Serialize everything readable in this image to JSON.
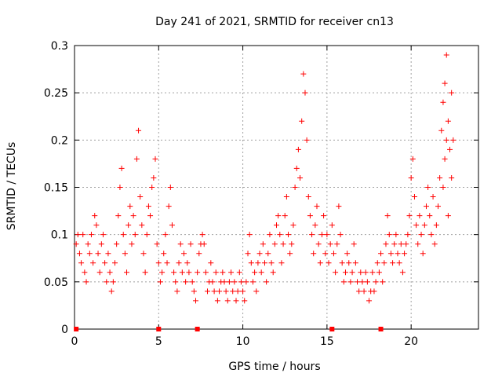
{
  "chart_data": {
    "type": "scatter",
    "title": "Day 241 of 2021, SRMTID for receiver cn13",
    "xlabel": "GPS time / hours",
    "ylabel": "SRMTID / TECUs",
    "xlim": [
      0,
      24
    ],
    "ylim": [
      0,
      0.3
    ],
    "x_ticks": [
      0,
      5,
      10,
      15,
      20
    ],
    "x_tick_labels": [
      "0",
      "5",
      "10",
      "15",
      "20"
    ],
    "y_ticks": [
      0,
      0.05,
      0.1,
      0.15,
      0.2,
      0.25,
      0.3
    ],
    "y_tick_labels": [
      "0",
      "0.05",
      "0.1",
      "0.15",
      "0.2",
      "0.25",
      "0.3"
    ],
    "grid": true,
    "marker": "plus",
    "color": "#ff0000",
    "series": [
      {
        "name": "SRMTID",
        "points": [
          [
            0.1,
            0.09
          ],
          [
            0.2,
            0.1
          ],
          [
            0.3,
            0.08
          ],
          [
            0.4,
            0.07
          ],
          [
            0.5,
            0.1
          ],
          [
            0.6,
            0.06
          ],
          [
            0.7,
            0.05
          ],
          [
            0.8,
            0.09
          ],
          [
            0.9,
            0.08
          ],
          [
            1.0,
            0.1
          ],
          [
            1.1,
            0.07
          ],
          [
            1.2,
            0.12
          ],
          [
            1.3,
            0.11
          ],
          [
            1.4,
            0.08
          ],
          [
            1.5,
            0.06
          ],
          [
            1.6,
            0.09
          ],
          [
            1.7,
            0.1
          ],
          [
            1.8,
            0.07
          ],
          [
            1.9,
            0.05
          ],
          [
            2.0,
            0.08
          ],
          [
            2.1,
            0.06
          ],
          [
            2.2,
            0.04
          ],
          [
            2.3,
            0.05
          ],
          [
            2.4,
            0.07
          ],
          [
            2.5,
            0.09
          ],
          [
            2.6,
            0.12
          ],
          [
            2.7,
            0.15
          ],
          [
            2.8,
            0.17
          ],
          [
            2.9,
            0.1
          ],
          [
            3.0,
            0.08
          ],
          [
            3.1,
            0.06
          ],
          [
            3.2,
            0.11
          ],
          [
            3.3,
            0.13
          ],
          [
            3.4,
            0.09
          ],
          [
            3.5,
            0.12
          ],
          [
            3.6,
            0.1
          ],
          [
            3.7,
            0.18
          ],
          [
            3.8,
            0.21
          ],
          [
            3.9,
            0.14
          ],
          [
            4.0,
            0.11
          ],
          [
            4.1,
            0.08
          ],
          [
            4.2,
            0.06
          ],
          [
            4.3,
            0.1
          ],
          [
            4.4,
            0.13
          ],
          [
            4.5,
            0.12
          ],
          [
            4.6,
            0.15
          ],
          [
            4.7,
            0.16
          ],
          [
            4.8,
            0.18
          ],
          [
            4.9,
            0.09
          ],
          [
            5.0,
            0.07
          ],
          [
            5.1,
            0.05
          ],
          [
            5.2,
            0.06
          ],
          [
            5.3,
            0.08
          ],
          [
            5.4,
            0.1
          ],
          [
            5.5,
            0.07
          ],
          [
            5.6,
            0.13
          ],
          [
            5.7,
            0.15
          ],
          [
            5.8,
            0.11
          ],
          [
            5.9,
            0.06
          ],
          [
            6.0,
            0.05
          ],
          [
            6.1,
            0.04
          ],
          [
            6.2,
            0.07
          ],
          [
            6.3,
            0.09
          ],
          [
            6.4,
            0.06
          ],
          [
            6.5,
            0.08
          ],
          [
            6.6,
            0.05
          ],
          [
            6.7,
            0.07
          ],
          [
            6.8,
            0.06
          ],
          [
            6.9,
            0.09
          ],
          [
            7.0,
            0.05
          ],
          [
            7.1,
            0.04
          ],
          [
            7.2,
            0.03
          ],
          [
            7.3,
            0.06
          ],
          [
            7.4,
            0.08
          ],
          [
            7.5,
            0.09
          ],
          [
            7.6,
            0.1
          ],
          [
            7.7,
            0.09
          ],
          [
            7.8,
            0.06
          ],
          [
            7.9,
            0.04
          ],
          [
            8.0,
            0.05
          ],
          [
            8.1,
            0.07
          ],
          [
            8.2,
            0.05
          ],
          [
            8.3,
            0.04
          ],
          [
            8.4,
            0.06
          ],
          [
            8.5,
            0.03
          ],
          [
            8.6,
            0.04
          ],
          [
            8.7,
            0.05
          ],
          [
            8.8,
            0.06
          ],
          [
            8.9,
            0.05
          ],
          [
            9.0,
            0.04
          ],
          [
            9.1,
            0.03
          ],
          [
            9.2,
            0.05
          ],
          [
            9.3,
            0.06
          ],
          [
            9.4,
            0.04
          ],
          [
            9.5,
            0.05
          ],
          [
            9.6,
            0.03
          ],
          [
            9.7,
            0.04
          ],
          [
            9.8,
            0.06
          ],
          [
            9.9,
            0.05
          ],
          [
            10.0,
            0.04
          ],
          [
            10.1,
            0.03
          ],
          [
            10.2,
            0.05
          ],
          [
            10.3,
            0.08
          ],
          [
            10.4,
            0.1
          ],
          [
            10.5,
            0.07
          ],
          [
            10.6,
            0.05
          ],
          [
            10.7,
            0.06
          ],
          [
            10.8,
            0.04
          ],
          [
            10.9,
            0.07
          ],
          [
            11.0,
            0.08
          ],
          [
            11.1,
            0.06
          ],
          [
            11.2,
            0.09
          ],
          [
            11.3,
            0.07
          ],
          [
            11.4,
            0.05
          ],
          [
            11.5,
            0.08
          ],
          [
            11.6,
            0.1
          ],
          [
            11.7,
            0.07
          ],
          [
            11.8,
            0.06
          ],
          [
            11.9,
            0.09
          ],
          [
            12.0,
            0.11
          ],
          [
            12.1,
            0.12
          ],
          [
            12.2,
            0.1
          ],
          [
            12.3,
            0.07
          ],
          [
            12.4,
            0.09
          ],
          [
            12.5,
            0.12
          ],
          [
            12.6,
            0.14
          ],
          [
            12.7,
            0.1
          ],
          [
            12.8,
            0.08
          ],
          [
            12.9,
            0.09
          ],
          [
            13.0,
            0.11
          ],
          [
            13.1,
            0.15
          ],
          [
            13.2,
            0.17
          ],
          [
            13.3,
            0.19
          ],
          [
            13.4,
            0.16
          ],
          [
            13.5,
            0.22
          ],
          [
            13.6,
            0.27
          ],
          [
            13.7,
            0.25
          ],
          [
            13.8,
            0.2
          ],
          [
            13.9,
            0.14
          ],
          [
            14.0,
            0.12
          ],
          [
            14.1,
            0.1
          ],
          [
            14.2,
            0.08
          ],
          [
            14.3,
            0.11
          ],
          [
            14.4,
            0.13
          ],
          [
            14.5,
            0.09
          ],
          [
            14.6,
            0.07
          ],
          [
            14.7,
            0.1
          ],
          [
            14.8,
            0.12
          ],
          [
            14.9,
            0.08
          ],
          [
            15.0,
            0.1
          ],
          [
            15.1,
            0.07
          ],
          [
            15.2,
            0.09
          ],
          [
            15.3,
            0.11
          ],
          [
            15.4,
            0.08
          ],
          [
            15.5,
            0.06
          ],
          [
            15.6,
            0.09
          ],
          [
            15.7,
            0.13
          ],
          [
            15.8,
            0.1
          ],
          [
            15.9,
            0.07
          ],
          [
            16.0,
            0.05
          ],
          [
            16.1,
            0.06
          ],
          [
            16.2,
            0.08
          ],
          [
            16.3,
            0.07
          ],
          [
            16.4,
            0.05
          ],
          [
            16.5,
            0.06
          ],
          [
            16.6,
            0.09
          ],
          [
            16.7,
            0.07
          ],
          [
            16.8,
            0.05
          ],
          [
            16.9,
            0.04
          ],
          [
            17.0,
            0.06
          ],
          [
            17.1,
            0.05
          ],
          [
            17.2,
            0.04
          ],
          [
            17.3,
            0.06
          ],
          [
            17.4,
            0.05
          ],
          [
            17.5,
            0.03
          ],
          [
            17.6,
            0.04
          ],
          [
            17.7,
            0.06
          ],
          [
            17.8,
            0.04
          ],
          [
            17.9,
            0.05
          ],
          [
            18.0,
            0.07
          ],
          [
            18.1,
            0.06
          ],
          [
            18.2,
            0.08
          ],
          [
            18.3,
            0.05
          ],
          [
            18.4,
            0.07
          ],
          [
            18.5,
            0.09
          ],
          [
            18.6,
            0.12
          ],
          [
            18.7,
            0.1
          ],
          [
            18.8,
            0.08
          ],
          [
            18.9,
            0.07
          ],
          [
            19.0,
            0.09
          ],
          [
            19.1,
            0.1
          ],
          [
            19.2,
            0.08
          ],
          [
            19.3,
            0.07
          ],
          [
            19.4,
            0.09
          ],
          [
            19.5,
            0.06
          ],
          [
            19.6,
            0.08
          ],
          [
            19.7,
            0.09
          ],
          [
            19.8,
            0.1
          ],
          [
            19.9,
            0.12
          ],
          [
            20.0,
            0.16
          ],
          [
            20.1,
            0.18
          ],
          [
            20.2,
            0.14
          ],
          [
            20.3,
            0.11
          ],
          [
            20.4,
            0.09
          ],
          [
            20.5,
            0.12
          ],
          [
            20.6,
            0.1
          ],
          [
            20.7,
            0.08
          ],
          [
            20.8,
            0.11
          ],
          [
            20.9,
            0.13
          ],
          [
            21.0,
            0.15
          ],
          [
            21.1,
            0.12
          ],
          [
            21.2,
            0.1
          ],
          [
            21.3,
            0.14
          ],
          [
            21.4,
            0.09
          ],
          [
            21.5,
            0.11
          ],
          [
            21.6,
            0.13
          ],
          [
            21.7,
            0.16
          ],
          [
            21.8,
            0.21
          ],
          [
            21.9,
            0.24
          ],
          [
            22.0,
            0.26
          ],
          [
            22.1,
            0.29
          ],
          [
            22.2,
            0.22
          ],
          [
            22.3,
            0.19
          ],
          [
            22.4,
            0.25
          ],
          [
            22.5,
            0.2
          ],
          [
            22.0,
            0.18
          ],
          [
            21.9,
            0.15
          ],
          [
            22.2,
            0.12
          ],
          [
            22.4,
            0.16
          ],
          [
            22.1,
            0.2
          ]
        ]
      }
    ],
    "baseline_markers": [
      0.1,
      5.0,
      7.3,
      15.3,
      18.2
    ]
  }
}
